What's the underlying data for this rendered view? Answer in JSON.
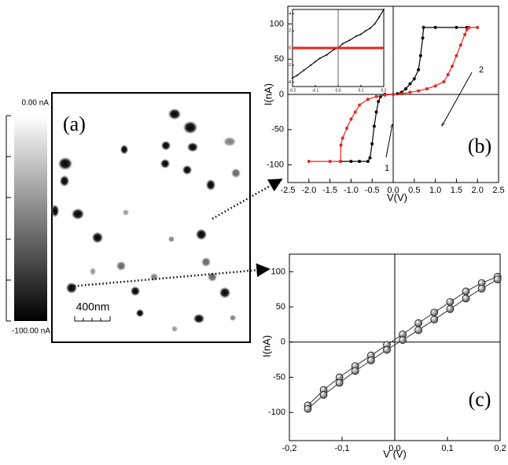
{
  "panel_a": {
    "label": "(a)",
    "colorbar_top": "0.00 nA",
    "colorbar_bottom": "-100.00 nA",
    "scale_bar": "400nm"
  },
  "chart_data": [
    {
      "type": "line",
      "panel_label": "(b)",
      "x_label": "V(V)",
      "y_label": "I(nA)",
      "annotations": [
        "1",
        "2"
      ],
      "marker": "dot",
      "zero_lines": true,
      "xlim": [
        -2.5,
        2.5
      ],
      "ylim": [
        -125,
        125
      ],
      "xticks": [
        -2.5,
        {
          "value": -2.0,
          "label": "-2.0"
        },
        -1.5,
        {
          "value": -1.0,
          "label": "-1.0"
        },
        -0.5,
        {
          "value": 0,
          "label": "0.0"
        },
        0.5,
        {
          "value": 1,
          "label": "1.0"
        },
        1.5,
        {
          "value": 2,
          "label": "2.0"
        },
        2.5
      ],
      "yticks": [
        -100,
        -50,
        0,
        50,
        100
      ],
      "series": [
        {
          "color": "#000000",
          "x": [
            -1.25,
            -1.0,
            -0.8,
            -0.6,
            -0.55,
            -0.5,
            -0.45,
            -0.4,
            -0.35,
            -0.3,
            -0.2,
            0.0,
            0.1,
            0.2,
            0.3,
            0.4,
            0.5,
            0.6,
            0.65,
            0.7,
            0.72,
            1.0,
            1.5,
            1.75
          ],
          "values": [
            -95,
            -95,
            -95,
            -95,
            -90,
            -70,
            -45,
            -25,
            -10,
            -3,
            0,
            0,
            1,
            3,
            8,
            15,
            22,
            35,
            55,
            80,
            95,
            95,
            95,
            95
          ]
        },
        {
          "color": "#e8251c",
          "x": [
            -2.0,
            -1.5,
            -1.25,
            -1.24,
            -1.2,
            -1.1,
            -1.0,
            -0.9,
            -0.8,
            -0.6,
            -0.4,
            -0.2,
            0.0,
            0.2,
            0.4,
            0.6,
            0.8,
            1.0,
            1.2,
            1.3,
            1.4,
            1.5,
            1.6,
            1.7,
            1.75,
            1.8,
            2.0
          ],
          "values": [
            -95,
            -95,
            -95,
            -72,
            -62,
            -48,
            -35,
            -25,
            -15,
            -7,
            -3,
            -1,
            0,
            1,
            3,
            5,
            8,
            12,
            18,
            28,
            40,
            55,
            70,
            85,
            92,
            95,
            95
          ]
        }
      ]
    },
    {
      "type": "line",
      "marker": "dot",
      "zero_lines": true,
      "xlim": [
        -0.2,
        0.2
      ],
      "ylim": [
        -4.5,
        4.5
      ],
      "xticks": [
        -0.2,
        -0.1,
        {
          "value": 0,
          "label": "0.0"
        },
        0.1,
        0.2
      ],
      "yticks": [
        -4,
        -2,
        0,
        2,
        4
      ],
      "series": [
        {
          "color": "#000000",
          "x": [
            -0.2,
            -0.18,
            -0.15,
            -0.12,
            -0.1,
            -0.08,
            -0.05,
            -0.02,
            0,
            0.02,
            0.05,
            0.08,
            0.1,
            0.12,
            0.14,
            0.16,
            0.18,
            0.2
          ],
          "values": [
            -3.5,
            -3.2,
            -2.6,
            -2.0,
            -1.6,
            -1.2,
            -0.8,
            -0.2,
            0,
            0.5,
            0.9,
            1.4,
            1.6,
            2.0,
            2.3,
            2.8,
            3.6,
            4.5
          ]
        },
        {
          "color": "#e8251c",
          "x": [
            -0.2,
            0.2
          ],
          "values": [
            0,
            0
          ]
        }
      ]
    },
    {
      "type": "line",
      "panel_label": "(c)",
      "x_label": "V (V)",
      "y_label": "I(nA)",
      "marker": "ball",
      "zero_lines": true,
      "xlim": [
        -0.2,
        0.2
      ],
      "ylim": [
        -140,
        125
      ],
      "xticks": [
        {
          "value": -0.2,
          "label": "-0,2"
        },
        {
          "value": -0.1,
          "label": "-0,1"
        },
        {
          "value": 0,
          "label": "0,0"
        },
        {
          "value": 0.1,
          "label": "0,1"
        },
        {
          "value": 0.2,
          "label": "0,2"
        }
      ],
      "yticks": [
        -100,
        -50,
        0,
        50,
        100
      ],
      "x": [
        -0.165,
        -0.135,
        -0.105,
        -0.075,
        -0.045,
        -0.015,
        0.015,
        0.045,
        0.075,
        0.105,
        0.135,
        0.165,
        0.195
      ],
      "series": [
        {
          "color": "#333333",
          "values": [
            -90,
            -68,
            -50,
            -34,
            -19,
            -4,
            11,
            27,
            42,
            57,
            72,
            84,
            93
          ]
        },
        {
          "color": "#333333",
          "values": [
            -95,
            -75,
            -58,
            -41,
            -26,
            -11,
            3,
            17,
            32,
            47,
            62,
            76,
            89
          ]
        }
      ]
    }
  ]
}
